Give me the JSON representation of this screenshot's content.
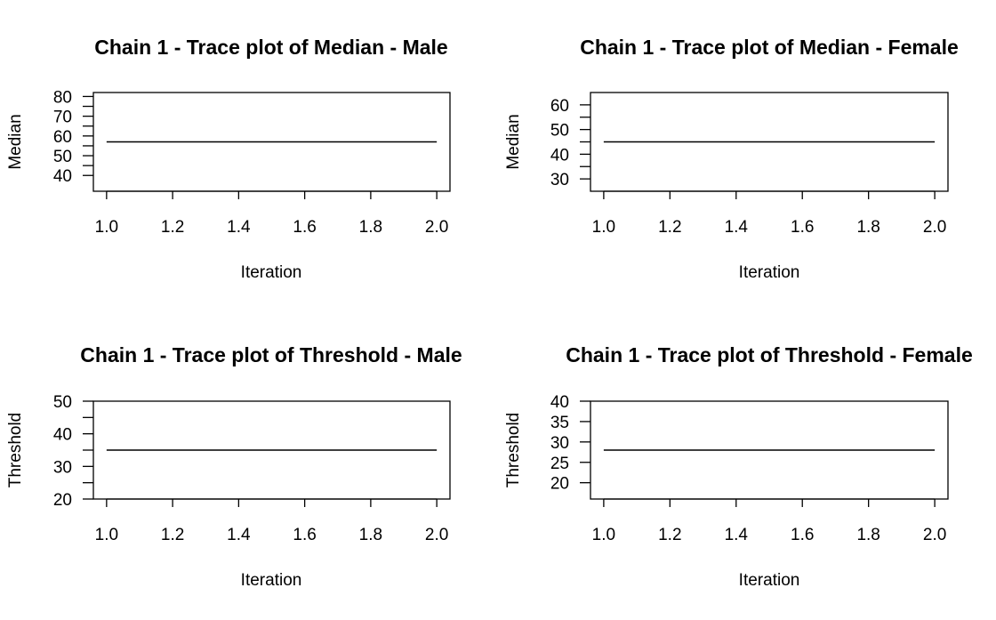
{
  "chart_data": [
    {
      "type": "line",
      "title": "Chain 1 - Trace plot of Median - Male",
      "xlabel": "Iteration",
      "ylabel": "Median",
      "xlim": [
        0.96,
        2.04
      ],
      "ylim": [
        32,
        82
      ],
      "x_ticks": [
        1.0,
        1.2,
        1.4,
        1.6,
        1.8,
        2.0
      ],
      "x_tick_labels": [
        "1.0",
        "1.2",
        "1.4",
        "1.6",
        "1.8",
        "2.0"
      ],
      "y_ticks": [
        40,
        50,
        60,
        70,
        80
      ],
      "y_tick_labels": [
        "40",
        "50",
        "60",
        "70",
        "80"
      ],
      "y_minor_ticks": [
        45,
        55,
        65,
        75
      ],
      "x": [
        1,
        2
      ],
      "y": [
        57,
        57
      ],
      "grid": false,
      "color": "#000000"
    },
    {
      "type": "line",
      "title": "Chain 1 - Trace plot of Median - Female",
      "xlabel": "Iteration",
      "ylabel": "Median",
      "xlim": [
        0.96,
        2.04
      ],
      "ylim": [
        25,
        65
      ],
      "x_ticks": [
        1.0,
        1.2,
        1.4,
        1.6,
        1.8,
        2.0
      ],
      "x_tick_labels": [
        "1.0",
        "1.2",
        "1.4",
        "1.6",
        "1.8",
        "2.0"
      ],
      "y_ticks": [
        30,
        40,
        50,
        60
      ],
      "y_tick_labels": [
        "30",
        "40",
        "50",
        "60"
      ],
      "y_minor_ticks": [
        35,
        45,
        55
      ],
      "x": [
        1,
        2
      ],
      "y": [
        45,
        45
      ],
      "grid": false,
      "color": "#000000"
    },
    {
      "type": "line",
      "title": "Chain 1 - Trace plot of Threshold - Male",
      "xlabel": "Iteration",
      "ylabel": "Threshold",
      "xlim": [
        0.96,
        2.04
      ],
      "ylim": [
        20,
        50
      ],
      "x_ticks": [
        1.0,
        1.2,
        1.4,
        1.6,
        1.8,
        2.0
      ],
      "x_tick_labels": [
        "1.0",
        "1.2",
        "1.4",
        "1.6",
        "1.8",
        "2.0"
      ],
      "y_ticks": [
        20,
        30,
        40,
        50
      ],
      "y_tick_labels": [
        "20",
        "30",
        "40",
        "50"
      ],
      "y_minor_ticks": [
        25,
        35,
        45
      ],
      "x": [
        1,
        2
      ],
      "y": [
        35,
        35
      ],
      "grid": false,
      "color": "#000000"
    },
    {
      "type": "line",
      "title": "Chain 1 - Trace plot of Threshold - Female",
      "xlabel": "Iteration",
      "ylabel": "Threshold",
      "xlim": [
        0.96,
        2.04
      ],
      "ylim": [
        16,
        40
      ],
      "x_ticks": [
        1.0,
        1.2,
        1.4,
        1.6,
        1.8,
        2.0
      ],
      "x_tick_labels": [
        "1.0",
        "1.2",
        "1.4",
        "1.6",
        "1.8",
        "2.0"
      ],
      "y_ticks": [
        20,
        25,
        30,
        35,
        40
      ],
      "y_tick_labels": [
        "20",
        "25",
        "30",
        "35",
        "40"
      ],
      "y_minor_ticks": [],
      "x": [
        1,
        2
      ],
      "y": [
        28,
        28
      ],
      "grid": false,
      "color": "#000000"
    }
  ]
}
